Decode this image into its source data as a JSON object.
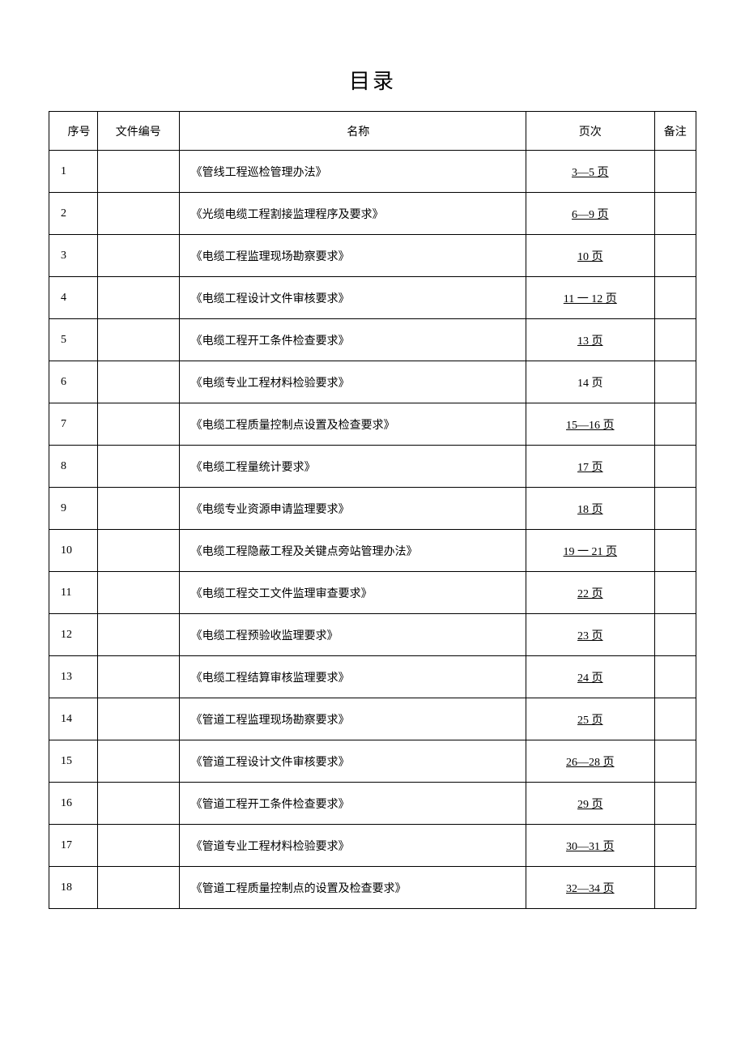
{
  "title": "目录",
  "columns": {
    "index": "序号",
    "code": "文件编号",
    "name": "名称",
    "page": "页次",
    "note": "备注"
  },
  "rows": [
    {
      "index": "1",
      "code": "",
      "name": "《管线工程巡检管理办法》",
      "page": "3—5 页",
      "page_underline": true,
      "note": ""
    },
    {
      "index": "2",
      "code": "",
      "name": "《光缆电缆工程割接监理程序及要求》",
      "page": "6—9 页",
      "page_underline": true,
      "note": ""
    },
    {
      "index": "3",
      "code": "",
      "name": "《电缆工程监理现场勘察要求》",
      "page": "10 页",
      "page_underline": true,
      "note": ""
    },
    {
      "index": "4",
      "code": "",
      "name": "《电缆工程设计文件审核要求》",
      "page": "11 一 12 页",
      "page_underline": true,
      "note": ""
    },
    {
      "index": "5",
      "code": "",
      "name": "《电缆工程开工条件检查要求》",
      "page": "13 页",
      "page_underline": true,
      "note": ""
    },
    {
      "index": "6",
      "code": "",
      "name": "《电缆专业工程材料检验要求》",
      "page": "14 页",
      "page_underline": false,
      "note": ""
    },
    {
      "index": "7",
      "code": "",
      "name": "《电缆工程质量控制点设置及检查要求》",
      "page": "15—16 页",
      "page_underline": true,
      "note": ""
    },
    {
      "index": "8",
      "code": "",
      "name": "《电缆工程量统计要求》",
      "page": "17 页",
      "page_underline": true,
      "note": ""
    },
    {
      "index": "9",
      "code": "",
      "name": "《电缆专业资源申请监理要求》",
      "page": "18 页",
      "page_underline": true,
      "note": ""
    },
    {
      "index": "10",
      "code": "",
      "name": "《电缆工程隐蔽工程及关键点旁站管理办法》",
      "page": "19 一 21 页",
      "page_underline": true,
      "note": ""
    },
    {
      "index": "11",
      "code": "",
      "name": "《电缆工程交工文件监理审查要求》",
      "page": "22 页",
      "page_underline": true,
      "note": ""
    },
    {
      "index": "12",
      "code": "",
      "name": "《电缆工程预验收监理要求》",
      "page": "23 页",
      "page_underline": true,
      "note": ""
    },
    {
      "index": "13",
      "code": "",
      "name": "《电缆工程结算审核监理要求》",
      "page": "24 页",
      "page_underline": true,
      "note": ""
    },
    {
      "index": "14",
      "code": "",
      "name": "《管道工程监理现场勘察要求》",
      "page": "25 页",
      "page_underline": true,
      "note": ""
    },
    {
      "index": "15",
      "code": "",
      "name": "《管道工程设计文件审核要求》",
      "page": "26—28 页",
      "page_underline": true,
      "note": ""
    },
    {
      "index": "16",
      "code": "",
      "name": "《管道工程开工条件检查要求》",
      "page": "29 页",
      "page_underline": true,
      "note": ""
    },
    {
      "index": "17",
      "code": "",
      "name": "《管道专业工程材料检验要求》",
      "page": "30—31 页",
      "page_underline": true,
      "note": ""
    },
    {
      "index": "18",
      "code": "",
      "name": "《管道工程质量控制点的设置及检查要求》",
      "page": "32—34 页",
      "page_underline": true,
      "note": ""
    }
  ]
}
